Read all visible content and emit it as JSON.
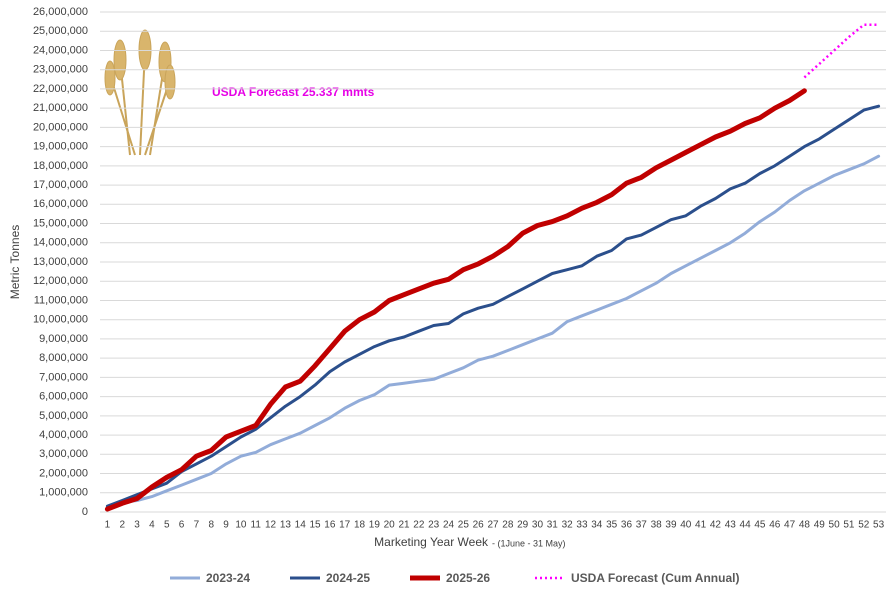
{
  "chart_data": {
    "type": "line",
    "annotation": "USDA Forecast 25.337 mmts",
    "ylabel": "Metric Tonnes",
    "xlabel": "Marketing Year Week",
    "xlabel_note": "- (1June - 31 May)",
    "categories": [
      1,
      2,
      3,
      4,
      5,
      6,
      7,
      8,
      9,
      10,
      11,
      12,
      13,
      14,
      15,
      16,
      17,
      18,
      19,
      20,
      21,
      22,
      23,
      24,
      25,
      26,
      27,
      28,
      29,
      30,
      31,
      32,
      33,
      34,
      35,
      36,
      37,
      38,
      39,
      40,
      41,
      42,
      43,
      44,
      45,
      46,
      47,
      48,
      49,
      50,
      51,
      52,
      53
    ],
    "ylim": [
      0,
      26000000
    ],
    "yticks": [
      0,
      {
        "value": 1000000,
        "label": "1,000,000"
      },
      {
        "value": 2000000,
        "label": "2,000,000"
      },
      {
        "value": 3000000,
        "label": "3,000,000"
      },
      {
        "value": 4000000,
        "label": "4,000,000"
      },
      {
        "value": 5000000,
        "label": "5,000,000"
      },
      {
        "value": 6000000,
        "label": "6,000,000"
      },
      {
        "value": 7000000,
        "label": "7,000,000"
      },
      {
        "value": 8000000,
        "label": "8,000,000"
      },
      {
        "value": 9000000,
        "label": "9,000,000"
      },
      {
        "value": 10000000,
        "label": "10,000,000"
      },
      {
        "value": 11000000,
        "label": "11,000,000"
      },
      {
        "value": 12000000,
        "label": "12,000,000"
      },
      {
        "value": 13000000,
        "label": "13,000,000"
      },
      {
        "value": 14000000,
        "label": "14,000,000"
      },
      {
        "value": 15000000,
        "label": "15,000,000"
      },
      {
        "value": 16000000,
        "label": "16,000,000"
      },
      {
        "value": 17000000,
        "label": "17,000,000"
      },
      {
        "value": 18000000,
        "label": "18,000,000"
      },
      {
        "value": 19000000,
        "label": "19,000,000"
      },
      {
        "value": 20000000,
        "label": "20,000,000"
      },
      {
        "value": 21000000,
        "label": "21,000,000"
      },
      {
        "value": 22000000,
        "label": "22,000,000"
      },
      {
        "value": 23000000,
        "label": "23,000,000"
      },
      {
        "value": 24000000,
        "label": "24,000,000"
      },
      {
        "value": 25000000,
        "label": "25,000,000"
      },
      {
        "value": 26000000,
        "label": "26,000,000"
      }
    ],
    "grid": true,
    "series": [
      {
        "name": "2023-24",
        "color": "#92acd9",
        "style": "solid",
        "values": [
          200000,
          500000,
          600000,
          800000,
          1100000,
          1400000,
          1700000,
          2000000,
          2500000,
          2900000,
          3100000,
          3500000,
          3800000,
          4100000,
          4500000,
          4900000,
          5400000,
          5800000,
          6100000,
          6600000,
          6700000,
          6800000,
          6900000,
          7200000,
          7500000,
          7900000,
          8100000,
          8400000,
          8700000,
          9000000,
          9300000,
          9900000,
          10200000,
          10500000,
          10800000,
          11100000,
          11500000,
          11900000,
          12400000,
          12800000,
          13200000,
          13600000,
          14000000,
          14500000,
          15100000,
          15600000,
          16200000,
          16700000,
          17100000,
          17500000,
          17800000,
          18100000,
          18500000
        ]
      },
      {
        "name": "2024-25",
        "color": "#2b4f8c",
        "style": "solid",
        "values": [
          300000,
          600000,
          900000,
          1200000,
          1500000,
          2100000,
          2500000,
          2900000,
          3400000,
          3900000,
          4300000,
          4900000,
          5500000,
          6000000,
          6600000,
          7300000,
          7800000,
          8200000,
          8600000,
          8900000,
          9100000,
          9400000,
          9700000,
          9800000,
          10300000,
          10600000,
          10800000,
          11200000,
          11600000,
          12000000,
          12400000,
          12600000,
          12800000,
          13300000,
          13600000,
          14200000,
          14400000,
          14800000,
          15200000,
          15400000,
          15900000,
          16300000,
          16800000,
          17100000,
          17600000,
          18000000,
          18500000,
          19000000,
          19400000,
          19900000,
          20400000,
          20900000,
          21100000
        ]
      },
      {
        "name": "2025-26",
        "color": "#c00000",
        "style": "solid",
        "values": [
          150000,
          450000,
          700000,
          1300000,
          1800000,
          2200000,
          2900000,
          3200000,
          3900000,
          4200000,
          4500000,
          5600000,
          6500000,
          6800000,
          7600000,
          8500000,
          9400000,
          10000000,
          10400000,
          11000000,
          11300000,
          11600000,
          11900000,
          12100000,
          12600000,
          12900000,
          13300000,
          13800000,
          14500000,
          14900000,
          15100000,
          15400000,
          15800000,
          16100000,
          16500000,
          17100000,
          17400000,
          17900000,
          18300000,
          18700000,
          19100000,
          19500000,
          19800000,
          20200000,
          20500000,
          21000000,
          21400000,
          21900000,
          null,
          null,
          null,
          null,
          null
        ]
      },
      {
        "name": "USDA Forecast (Cum Annual)",
        "color": "#ff00ff",
        "style": "dotted",
        "values": [
          null,
          null,
          null,
          null,
          null,
          null,
          null,
          null,
          null,
          null,
          null,
          null,
          null,
          null,
          null,
          null,
          null,
          null,
          null,
          null,
          null,
          null,
          null,
          null,
          null,
          null,
          null,
          null,
          null,
          null,
          null,
          null,
          null,
          null,
          null,
          null,
          null,
          null,
          null,
          null,
          null,
          null,
          null,
          null,
          null,
          null,
          null,
          22600000,
          23300000,
          24000000,
          24700000,
          25337000,
          25337000
        ]
      }
    ]
  }
}
